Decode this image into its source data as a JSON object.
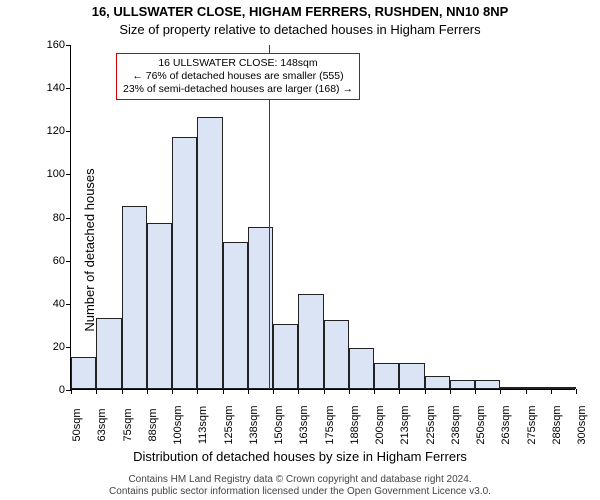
{
  "titles": {
    "line1": "16, ULLSWATER CLOSE, HIGHAM FERRERS, RUSHDEN, NN10 8NP",
    "line2": "Size of property relative to detached houses in Higham Ferrers"
  },
  "ylabel": "Number of detached houses",
  "xlabel": "Distribution of detached houses by size in Higham Ferrers",
  "footer": {
    "line1": "Contains HM Land Registry data © Crown copyright and database right 2024.",
    "line2": "Contains public sector information licensed under the Open Government Licence v3.0."
  },
  "chart": {
    "type": "histogram",
    "ylim": [
      0,
      160
    ],
    "ytick_step": 20,
    "yticks": [
      0,
      20,
      40,
      60,
      80,
      100,
      120,
      140,
      160
    ],
    "x_categories": [
      "50sqm",
      "63sqm",
      "75sqm",
      "88sqm",
      "100sqm",
      "113sqm",
      "125sqm",
      "138sqm",
      "150sqm",
      "163sqm",
      "175sqm",
      "188sqm",
      "200sqm",
      "213sqm",
      "225sqm",
      "238sqm",
      "250sqm",
      "263sqm",
      "275sqm",
      "288sqm",
      "300sqm"
    ],
    "values": [
      15,
      33,
      85,
      77,
      117,
      126,
      68,
      75,
      30,
      44,
      32,
      19,
      12,
      12,
      6,
      4,
      4,
      0,
      1,
      0
    ],
    "bar_fill": "#dbe4f4",
    "bar_stroke": "#222222",
    "bar_stroke_width": 0.6,
    "background_color": "#ffffff",
    "axis_color": "#000000",
    "tick_fontsize": 11,
    "label_fontsize": 13,
    "reference_line": {
      "x_value_sqm": 148,
      "x_range": [
        50,
        300
      ],
      "color": "#cc0000",
      "width": 1
    },
    "info_box": {
      "border_color": "#cc0000",
      "lines": [
        "16 ULLSWATER CLOSE: 148sqm",
        "← 76% of detached houses are smaller (555)",
        "23% of semi-detached houses are larger (168) →"
      ]
    }
  }
}
